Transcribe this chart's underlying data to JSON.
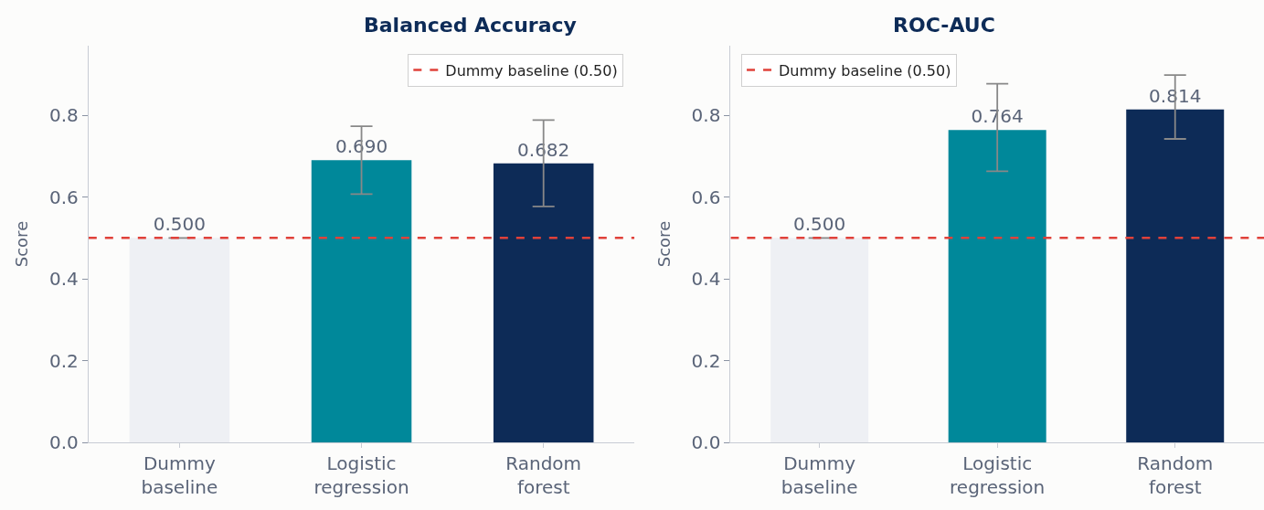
{
  "chart_data": [
    {
      "type": "bar",
      "title": "Balanced Accuracy",
      "ylabel": "Score",
      "categories": [
        "Dummy\nbaseline",
        "Logistic\nregression",
        "Random\nforest"
      ],
      "values": [
        0.5,
        0.69,
        0.682
      ],
      "colors": [
        "#eef0f4",
        "#00889a",
        "#0d2b57"
      ],
      "value_labels": [
        "0.500",
        "0.690",
        "0.682"
      ],
      "errors": [
        null,
        [
          0.607,
          0.773
        ],
        [
          0.577,
          0.788
        ]
      ],
      "ylim": [
        0,
        0.97
      ],
      "yticks": [
        {
          "value": 0,
          "label": "0.0"
        },
        0.2,
        0.4,
        0.6,
        0.8
      ],
      "grid": false,
      "legend": "top right",
      "ref_lines": [
        {
          "axis": "y",
          "value": 0.5,
          "label": "Dummy baseline (0.50)",
          "color": "#e0413a",
          "line_style": "dashed"
        }
      ]
    },
    {
      "type": "bar",
      "title": "ROC-AUC",
      "ylabel": "Score",
      "categories": [
        "Dummy\nbaseline",
        "Logistic\nregression",
        "Random\nforest"
      ],
      "values": [
        0.5,
        0.764,
        0.814
      ],
      "colors": [
        "#eef0f4",
        "#00889a",
        "#0d2b57"
      ],
      "value_labels": [
        "0.500",
        "0.764",
        "0.814"
      ],
      "errors": [
        null,
        [
          0.663,
          0.877
        ],
        [
          0.742,
          0.898
        ]
      ],
      "ylim": [
        0,
        0.97
      ],
      "yticks": [
        {
          "value": 0,
          "label": "0.0"
        },
        0.2,
        0.4,
        0.6,
        0.8
      ],
      "grid": false,
      "legend": "top left",
      "ref_lines": [
        {
          "axis": "y",
          "value": 0.5,
          "label": "Dummy baseline (0.50)",
          "color": "#e0413a",
          "line_style": "dashed"
        }
      ]
    }
  ]
}
